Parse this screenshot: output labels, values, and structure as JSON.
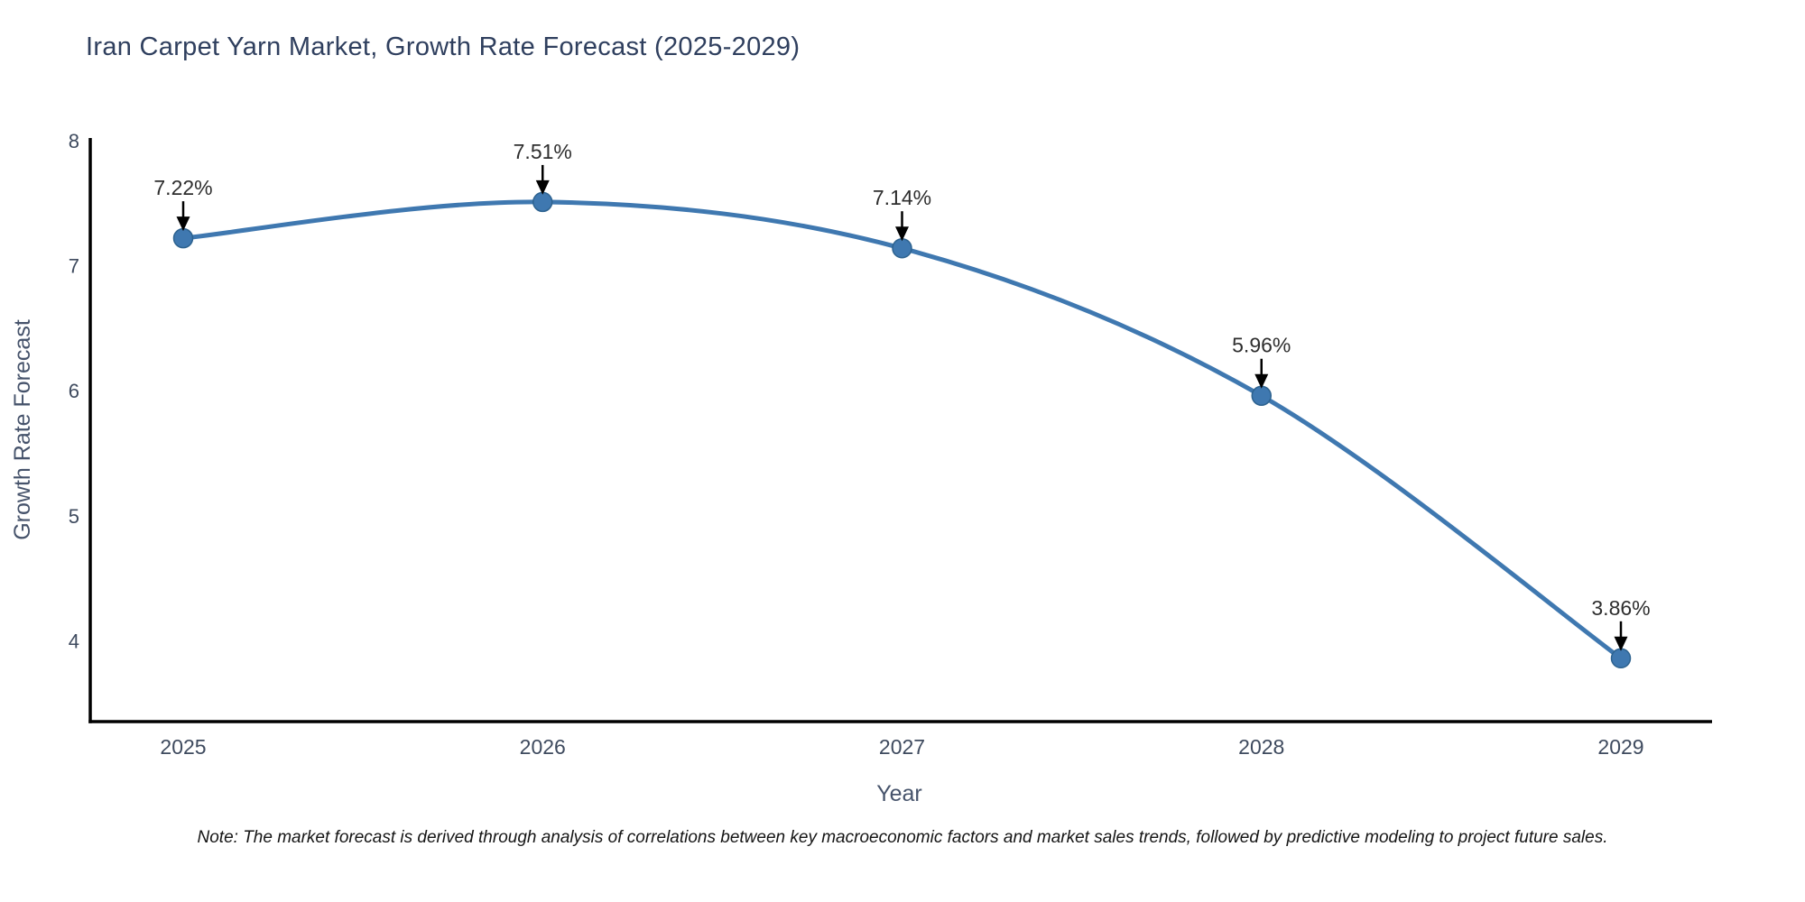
{
  "title": "Iran Carpet Yarn Market, Growth Rate Forecast (2025-2029)",
  "note": "Note: The market forecast is derived through analysis of correlations between key macroeconomic factors and market sales trends, followed by predictive modeling to project future sales.",
  "colors": {
    "line": "#3f78b0",
    "marker_fill": "#3f78b0",
    "marker_edge": "#2d628f",
    "axis": "#000000",
    "tick_label": "#3e4a5e",
    "axis_title": "#46536b",
    "title": "#2f3f5e",
    "annotation_text": "#2e2e2e",
    "annotation_arrow": "#000000"
  },
  "chart_data": {
    "type": "line",
    "line_shape": "spline",
    "x": [
      2025,
      2026,
      2027,
      2028,
      2029
    ],
    "values": [
      7.22,
      7.51,
      7.14,
      5.96,
      3.86
    ],
    "point_labels": [
      "7.22%",
      "7.51%",
      "7.14%",
      "5.96%",
      "3.86%"
    ],
    "title": "Iran Carpet Yarn Market, Growth Rate Forecast (2025-2029)",
    "xlabel": "Year",
    "ylabel": "Growth Rate Forecast",
    "xticks": [
      "2025",
      "2026",
      "2027",
      "2028",
      "2029"
    ],
    "yticks": [
      8,
      7,
      6,
      5,
      4
    ],
    "ylim": [
      3.35,
      8.0
    ],
    "grid": false,
    "legend_position": "none",
    "annotations": "value label with downward arrow above each point"
  }
}
